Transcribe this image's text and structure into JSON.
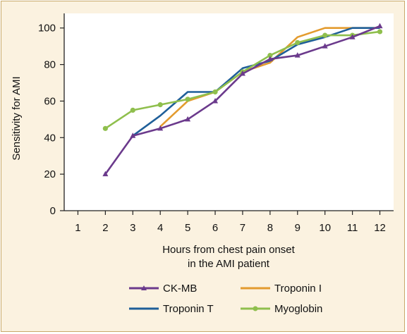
{
  "chart_data": {
    "type": "line",
    "xlabel_lines": [
      "Hours from chest pain onset",
      "in the AMI patient"
    ],
    "ylabel": "Sensitivity for AMI",
    "x_ticks": [
      1,
      2,
      3,
      4,
      5,
      6,
      7,
      8,
      9,
      10,
      11,
      12
    ],
    "y_ticks": [
      0,
      20,
      40,
      60,
      80,
      100
    ],
    "xlim": [
      0.5,
      12.5
    ],
    "ylim": [
      0,
      108
    ],
    "grid": false,
    "legend_position": "bottom",
    "series": [
      {
        "name": "CK-MB",
        "color": "#6b3a8c",
        "marker": "triangle",
        "x": [
          2,
          3,
          4,
          5,
          6,
          7,
          8,
          9,
          10,
          11,
          12
        ],
        "y": [
          20,
          41,
          45,
          50,
          60,
          75,
          83,
          85,
          90,
          95,
          101
        ]
      },
      {
        "name": "Troponin I",
        "color": "#e39b2e",
        "marker": "none",
        "x": [
          4,
          5,
          6,
          7,
          8,
          9,
          10,
          11,
          12
        ],
        "y": [
          46,
          60,
          65,
          76,
          81,
          95,
          100,
          100,
          100
        ]
      },
      {
        "name": "Troponin T",
        "color": "#1f5f99",
        "marker": "none",
        "x": [
          3,
          4,
          5,
          6,
          7,
          8,
          9,
          10,
          11,
          12
        ],
        "y": [
          41,
          52,
          65,
          65,
          78,
          82,
          91,
          95,
          100,
          100
        ]
      },
      {
        "name": "Myoglobin",
        "color": "#8fbf4d",
        "marker": "circle",
        "x": [
          2,
          3,
          4,
          5,
          6,
          7,
          8,
          9,
          10,
          11,
          12
        ],
        "y": [
          45,
          55,
          58,
          61,
          65,
          76,
          85,
          92,
          96,
          96,
          98
        ]
      }
    ]
  }
}
